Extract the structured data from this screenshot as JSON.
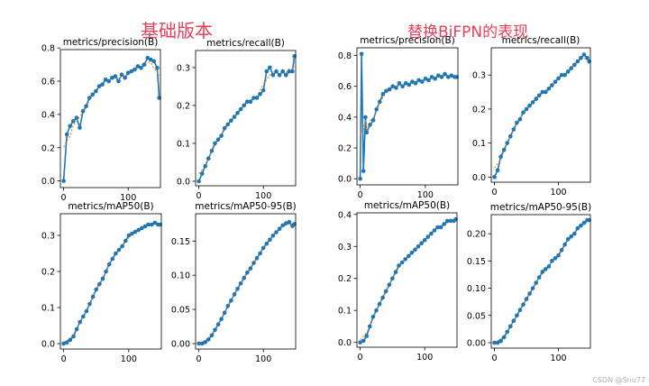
{
  "group_titles": [
    "基础版本",
    "替换BiFPN的表现"
  ],
  "watermark": "CSDN @Snu77",
  "colors": {
    "line": "#1f77b4",
    "smooth": "#ff7f0e",
    "title": "#e8405a"
  },
  "chart_data": [
    {
      "type": "line",
      "title": "metrics/precision(B)",
      "group": "基础版本",
      "xlim": [
        -5,
        150
      ],
      "ylim": [
        -0.04,
        0.79
      ],
      "xticks": [
        0,
        100
      ],
      "yticks": [
        0.0,
        0.2,
        0.4,
        0.6,
        0.8
      ],
      "x": [
        0,
        5,
        10,
        15,
        20,
        25,
        30,
        35,
        40,
        45,
        50,
        55,
        60,
        65,
        70,
        75,
        80,
        85,
        90,
        95,
        100,
        105,
        110,
        115,
        120,
        125,
        130,
        135,
        140,
        145,
        148
      ],
      "values": [
        0.0,
        0.28,
        0.33,
        0.36,
        0.38,
        0.32,
        0.42,
        0.45,
        0.5,
        0.52,
        0.54,
        0.57,
        0.58,
        0.61,
        0.6,
        0.62,
        0.63,
        0.6,
        0.64,
        0.62,
        0.65,
        0.66,
        0.67,
        0.69,
        0.68,
        0.7,
        0.74,
        0.73,
        0.72,
        0.68,
        0.5
      ]
    },
    {
      "type": "line",
      "title": "metrics/recall(B)",
      "group": "基础版本",
      "xlim": [
        -5,
        150
      ],
      "ylim": [
        -0.012,
        0.345
      ],
      "xticks": [
        0,
        100
      ],
      "yticks": [
        0.0,
        0.1,
        0.2,
        0.3
      ],
      "x": [
        0,
        5,
        10,
        15,
        20,
        25,
        30,
        35,
        40,
        45,
        50,
        55,
        60,
        65,
        70,
        75,
        80,
        85,
        90,
        95,
        100,
        105,
        110,
        115,
        120,
        125,
        130,
        135,
        140,
        145,
        148
      ],
      "values": [
        0.0,
        0.02,
        0.04,
        0.06,
        0.08,
        0.1,
        0.11,
        0.12,
        0.14,
        0.15,
        0.16,
        0.17,
        0.18,
        0.19,
        0.2,
        0.21,
        0.21,
        0.22,
        0.22,
        0.23,
        0.24,
        0.29,
        0.3,
        0.28,
        0.29,
        0.28,
        0.29,
        0.28,
        0.29,
        0.29,
        0.33
      ]
    },
    {
      "type": "line",
      "title": "metrics/mAP50(B)",
      "group": "基础版本",
      "xlim": [
        -5,
        150
      ],
      "ylim": [
        -0.015,
        0.36
      ],
      "xticks": [
        0,
        100
      ],
      "yticks": [
        0.0,
        0.1,
        0.2,
        0.3
      ],
      "x": [
        0,
        5,
        10,
        15,
        20,
        25,
        30,
        35,
        40,
        45,
        50,
        55,
        60,
        65,
        70,
        75,
        80,
        85,
        90,
        95,
        100,
        105,
        110,
        115,
        120,
        125,
        130,
        135,
        140,
        145,
        148
      ],
      "values": [
        0.0,
        0.003,
        0.01,
        0.02,
        0.04,
        0.06,
        0.075,
        0.09,
        0.11,
        0.13,
        0.15,
        0.165,
        0.18,
        0.2,
        0.22,
        0.235,
        0.25,
        0.26,
        0.27,
        0.285,
        0.3,
        0.305,
        0.31,
        0.315,
        0.32,
        0.325,
        0.33,
        0.33,
        0.335,
        0.33,
        0.33
      ]
    },
    {
      "type": "line",
      "title": "metrics/mAP50-95(B)",
      "group": "基础版本",
      "xlim": [
        -5,
        150
      ],
      "ylim": [
        -0.008,
        0.19
      ],
      "xticks": [
        0,
        100
      ],
      "yticks": [
        0.0,
        0.05,
        0.1,
        0.15
      ],
      "x": [
        0,
        5,
        10,
        15,
        20,
        25,
        30,
        35,
        40,
        45,
        50,
        55,
        60,
        65,
        70,
        75,
        80,
        85,
        90,
        95,
        100,
        105,
        110,
        115,
        120,
        125,
        130,
        135,
        140,
        145,
        148
      ],
      "values": [
        0.0,
        0.0,
        0.002,
        0.006,
        0.012,
        0.02,
        0.028,
        0.036,
        0.045,
        0.055,
        0.063,
        0.072,
        0.08,
        0.088,
        0.096,
        0.104,
        0.11,
        0.118,
        0.125,
        0.132,
        0.14,
        0.146,
        0.152,
        0.158,
        0.163,
        0.168,
        0.173,
        0.176,
        0.178,
        0.172,
        0.175
      ]
    },
    {
      "type": "line",
      "title": "metrics/precision(B)",
      "group": "替换BiFPN的表现",
      "xlim": [
        -5,
        150
      ],
      "ylim": [
        -0.04,
        0.85
      ],
      "xticks": [
        0,
        100
      ],
      "yticks": [
        0.0,
        0.2,
        0.4,
        0.6,
        0.8
      ],
      "x": [
        0,
        2,
        5,
        8,
        10,
        15,
        20,
        25,
        30,
        35,
        40,
        45,
        50,
        55,
        60,
        65,
        70,
        75,
        80,
        85,
        90,
        95,
        100,
        105,
        110,
        115,
        120,
        125,
        130,
        135,
        140,
        145,
        148
      ],
      "values": [
        0.0,
        0.81,
        0.05,
        0.4,
        0.3,
        0.35,
        0.38,
        0.45,
        0.5,
        0.55,
        0.57,
        0.58,
        0.6,
        0.59,
        0.62,
        0.6,
        0.62,
        0.61,
        0.63,
        0.62,
        0.64,
        0.63,
        0.65,
        0.64,
        0.66,
        0.65,
        0.67,
        0.66,
        0.68,
        0.66,
        0.67,
        0.66,
        0.66
      ]
    },
    {
      "type": "line",
      "title": "metrics/recall(B)",
      "group": "替换BiFPN的表现",
      "xlim": [
        -5,
        150
      ],
      "ylim": [
        -0.015,
        0.38
      ],
      "xticks": [
        0,
        100
      ],
      "yticks": [
        0.0,
        0.1,
        0.2,
        0.3
      ],
      "x": [
        0,
        5,
        10,
        15,
        20,
        25,
        30,
        35,
        40,
        45,
        50,
        55,
        60,
        65,
        70,
        75,
        80,
        85,
        90,
        95,
        100,
        105,
        110,
        115,
        120,
        125,
        130,
        135,
        140,
        145,
        148
      ],
      "values": [
        0.0,
        0.02,
        0.06,
        0.08,
        0.1,
        0.12,
        0.14,
        0.16,
        0.17,
        0.19,
        0.2,
        0.21,
        0.22,
        0.23,
        0.24,
        0.25,
        0.25,
        0.26,
        0.27,
        0.28,
        0.29,
        0.3,
        0.3,
        0.31,
        0.32,
        0.33,
        0.34,
        0.35,
        0.36,
        0.35,
        0.34
      ]
    },
    {
      "type": "line",
      "title": "metrics/mAP50(B)",
      "group": "替换BiFPN的表现",
      "xlim": [
        -5,
        150
      ],
      "ylim": [
        -0.015,
        0.405
      ],
      "xticks": [
        0,
        100
      ],
      "yticks": [
        0.0,
        0.1,
        0.2,
        0.3,
        0.4
      ],
      "x": [
        0,
        5,
        10,
        15,
        20,
        25,
        30,
        35,
        40,
        45,
        50,
        55,
        60,
        65,
        70,
        75,
        80,
        85,
        90,
        95,
        100,
        105,
        110,
        115,
        120,
        125,
        130,
        135,
        140,
        145,
        148
      ],
      "values": [
        0.0,
        0.005,
        0.02,
        0.05,
        0.08,
        0.1,
        0.12,
        0.14,
        0.16,
        0.18,
        0.2,
        0.22,
        0.24,
        0.25,
        0.26,
        0.27,
        0.28,
        0.29,
        0.3,
        0.31,
        0.32,
        0.33,
        0.34,
        0.35,
        0.36,
        0.36,
        0.37,
        0.38,
        0.38,
        0.38,
        0.385
      ]
    },
    {
      "type": "line",
      "title": "metrics/mAP50-95(B)",
      "group": "替换BiFPN的表现",
      "xlim": [
        -5,
        150
      ],
      "ylim": [
        -0.01,
        0.235
      ],
      "xticks": [
        0,
        100
      ],
      "yticks": [
        0.0,
        0.05,
        0.1,
        0.15,
        0.2
      ],
      "x": [
        0,
        5,
        10,
        15,
        20,
        25,
        30,
        35,
        40,
        45,
        50,
        55,
        60,
        65,
        70,
        75,
        80,
        85,
        90,
        95,
        100,
        105,
        110,
        115,
        120,
        125,
        130,
        135,
        140,
        145,
        148
      ],
      "values": [
        0.0,
        0.0,
        0.003,
        0.01,
        0.02,
        0.03,
        0.04,
        0.05,
        0.06,
        0.07,
        0.08,
        0.09,
        0.1,
        0.11,
        0.12,
        0.13,
        0.135,
        0.14,
        0.15,
        0.155,
        0.16,
        0.17,
        0.18,
        0.19,
        0.195,
        0.2,
        0.21,
        0.215,
        0.22,
        0.225,
        0.225
      ]
    }
  ]
}
